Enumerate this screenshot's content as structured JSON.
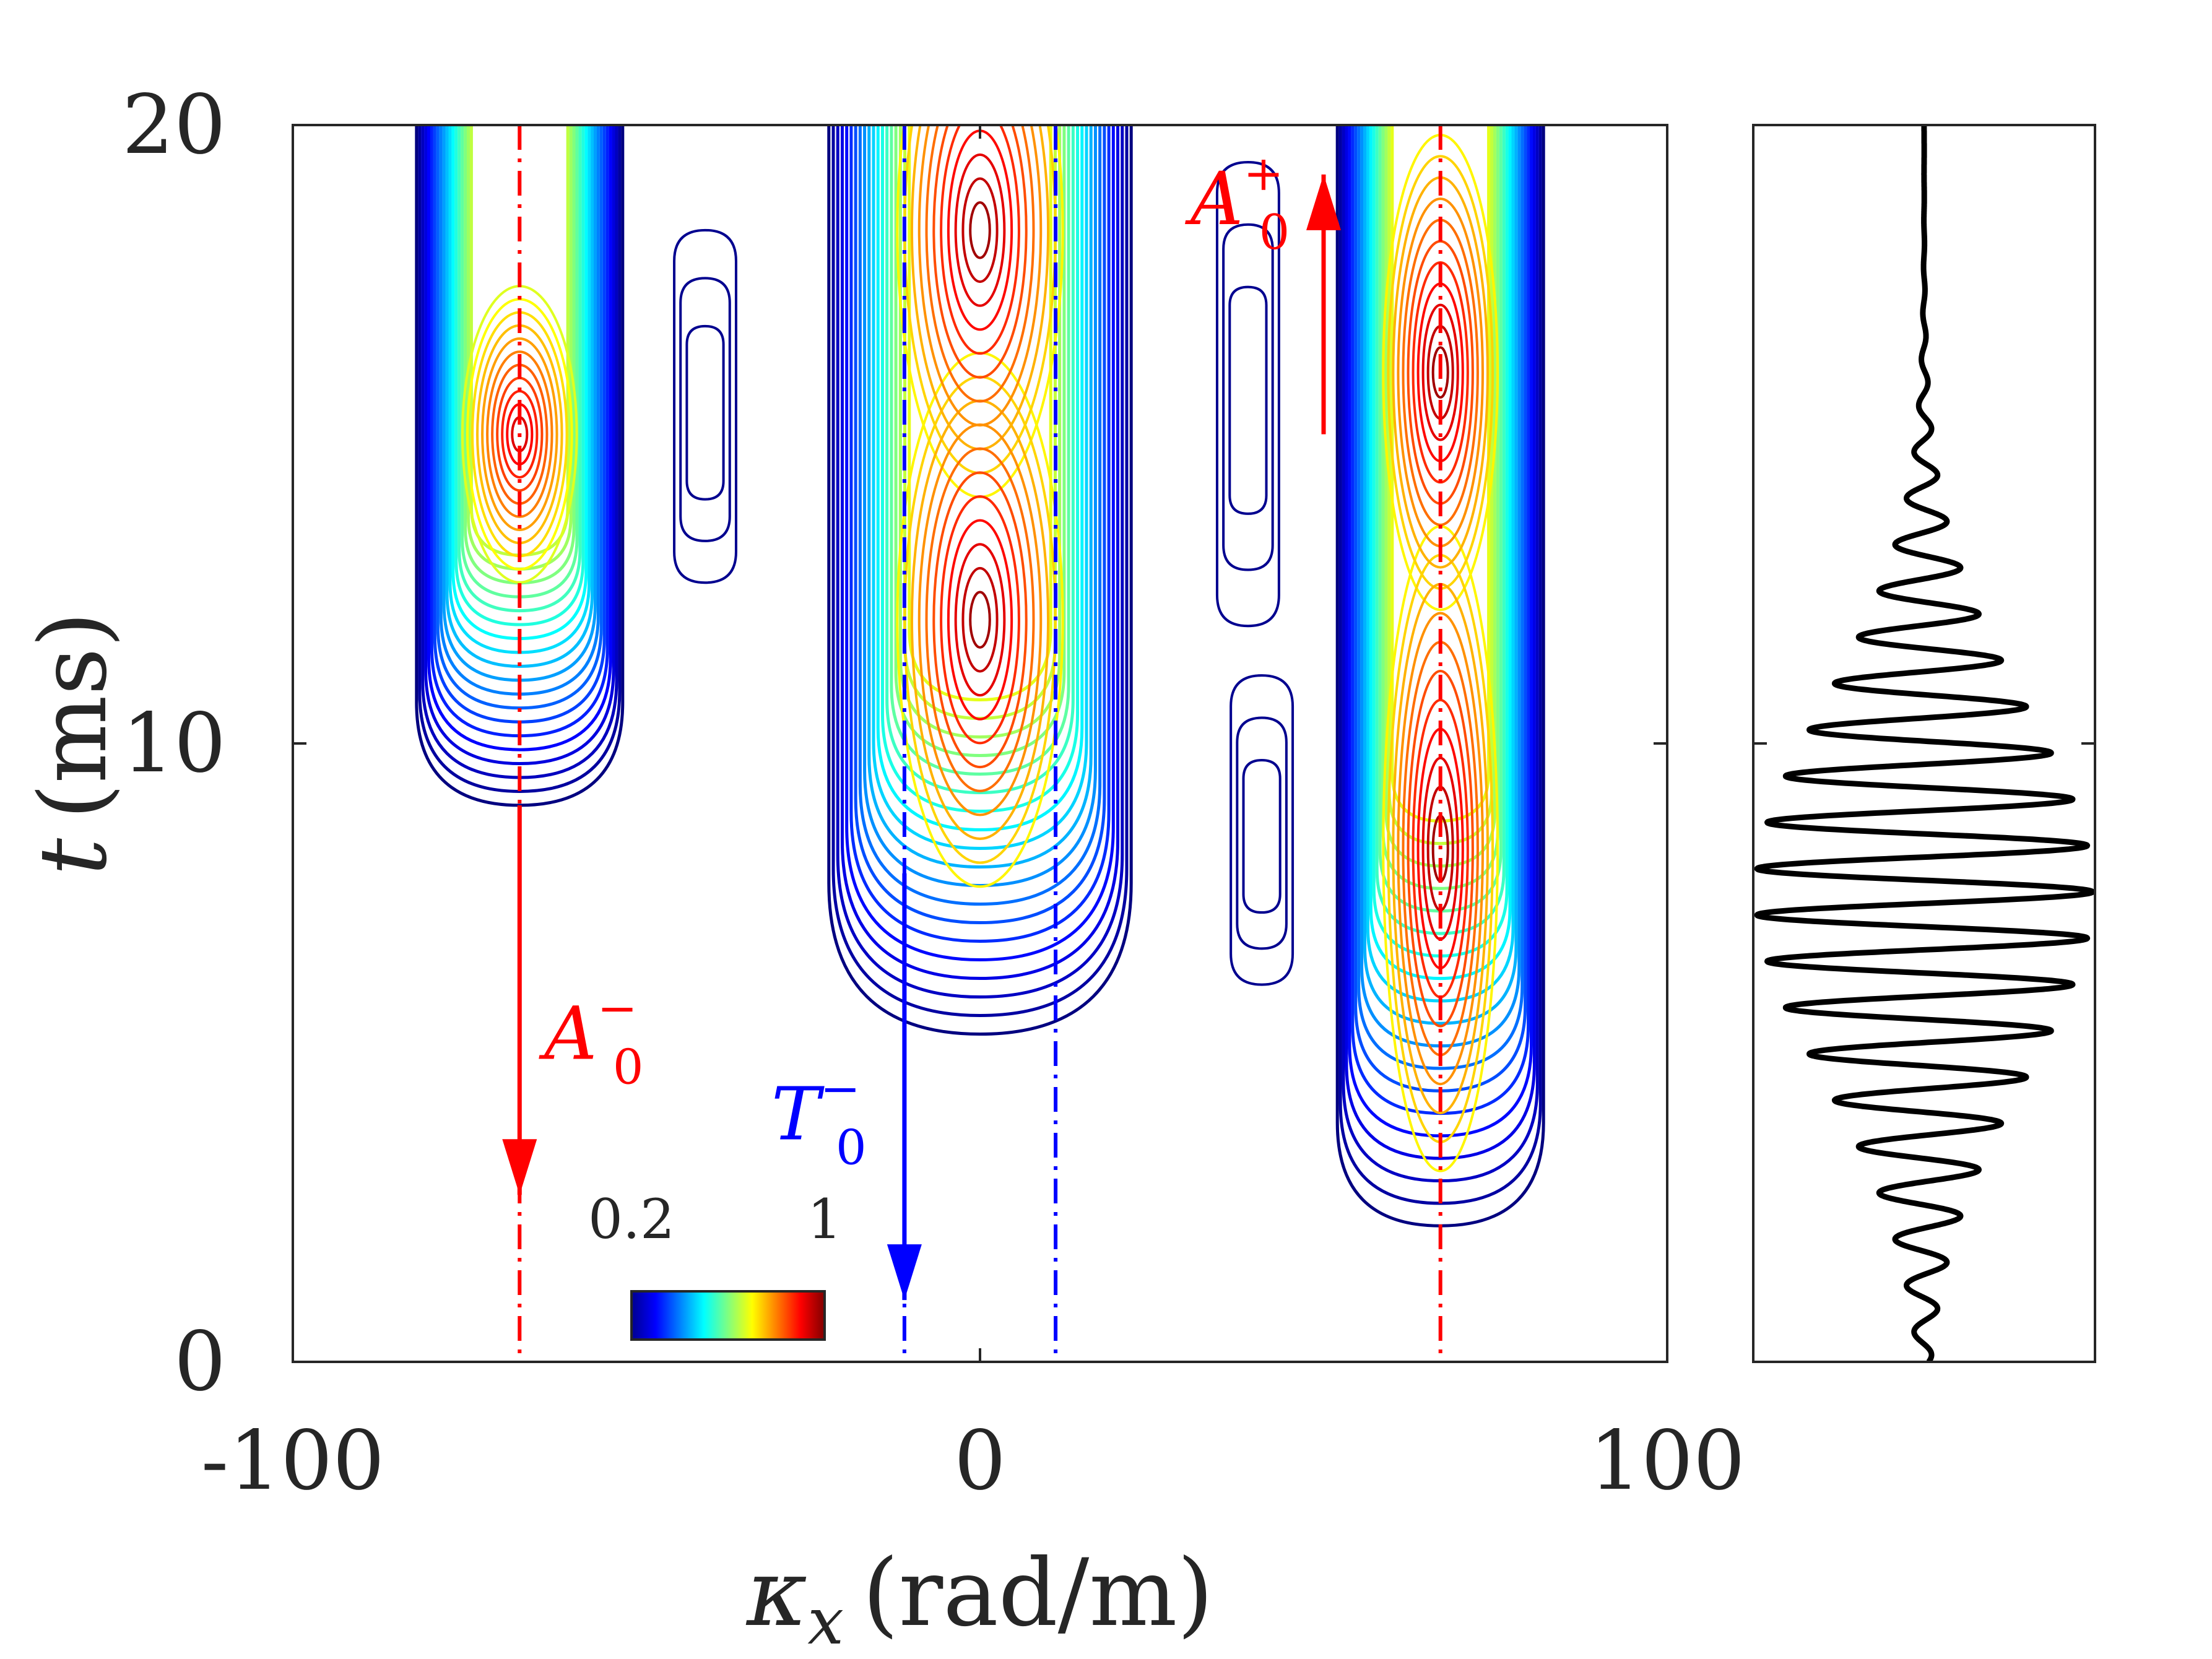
{
  "chart_data": {
    "type": "contour",
    "main_panel": {
      "xlabel": {
        "symbol": "κ",
        "subscript": "x",
        "units": "(rad/m)"
      },
      "ylabel": {
        "symbol": "t",
        "units": "(ms)"
      },
      "xlim": [
        -100,
        100
      ],
      "ylim": [
        0,
        20
      ],
      "xticks": [
        "-100",
        "0",
        "100"
      ],
      "yticks": [
        "0",
        "10",
        "20"
      ],
      "colormap": "jet",
      "colorbar": {
        "min_label": "0.2",
        "max_label": "1",
        "range": [
          0.2,
          1
        ]
      },
      "regions": [
        {
          "name": "left",
          "kx_center": -67,
          "kx_halfwidth": 15,
          "t_start": 9.0,
          "t_end": 20,
          "peaks": [
            {
              "t": 15.0,
              "level": 0.95
            }
          ]
        },
        {
          "name": "center",
          "kx_center": 0,
          "kx_halfwidth": 22,
          "t_start": 5.3,
          "t_end": 20,
          "peaks": [
            {
              "t": 12.0,
              "level": 1.0
            },
            {
              "t": 18.3,
              "level": 1.0
            }
          ]
        },
        {
          "name": "right",
          "kx_center": 67,
          "kx_halfwidth": 15,
          "t_start": 2.2,
          "t_end": 20,
          "peaks": [
            {
              "t": 8.3,
              "level": 1.0
            },
            {
              "t": 16.0,
              "level": 0.95
            }
          ]
        },
        {
          "name": "small-1",
          "kx_center": -40,
          "kx_halfwidth": 4.5,
          "t_start": 12.6,
          "t_end": 17.8,
          "peaks": [
            {
              "t": 15.5,
              "level": 0.3
            }
          ]
        },
        {
          "name": "small-2",
          "kx_center": 39,
          "kx_halfwidth": 4.5,
          "t_start": 11.9,
          "t_end": 18.9,
          "peaks": [
            {
              "t": 16.0,
              "level": 0.3
            }
          ]
        },
        {
          "name": "small-3",
          "kx_center": 41,
          "kx_halfwidth": 4.5,
          "t_start": 6.1,
          "t_end": 10.6,
          "peaks": [
            {
              "t": 8.3,
              "level": 0.3
            }
          ]
        }
      ],
      "dispersion_lines": [
        {
          "kx": -67,
          "color": "#ff0000",
          "label": "A",
          "sub": "0",
          "sup": "−",
          "direction": "down",
          "arrow_t": [
            9.0,
            2.7
          ],
          "label_t": 5.3
        },
        {
          "kx": -11,
          "color": "#0000ff",
          "label": "T",
          "sub": "0",
          "sup": "−",
          "direction": "down",
          "arrow_t": [
            7.9,
            1.0
          ],
          "label_t": 4.0
        },
        {
          "kx": 11,
          "color": "#0000ff"
        },
        {
          "kx": 67,
          "color": "#ff0000"
        },
        {
          "kx": 50,
          "color": "#ff0000",
          "label": "A",
          "sub": "0",
          "sup": "+",
          "direction": "up",
          "arrow_t": [
            15.0,
            19.2
          ],
          "label_t": 18.8,
          "line_hidden": true
        }
      ]
    },
    "signal_panel": {
      "type": "line",
      "description_free": true,
      "ylim": [
        0,
        20
      ],
      "center_t": 7.6,
      "sigma_t": 3.0,
      "period_t": 0.75,
      "amplitude": 1.0
    }
  },
  "colors": {
    "axis": "#262626",
    "red": "#ff0000",
    "blue": "#0000ff",
    "trace": "#000000"
  }
}
